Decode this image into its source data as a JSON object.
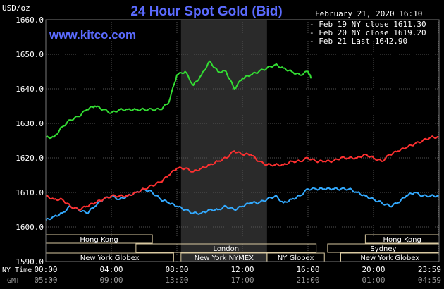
{
  "header": {
    "title": "24 Hour Spot Gold (Bid)",
    "site": "www.kitco.com",
    "unit": "USD/oz",
    "date": "February 21, 2020 16:10"
  },
  "legend": [
    {
      "label": "Feb 19 NY close 1611.30",
      "color": "#33aaff"
    },
    {
      "label": "Feb 20 NY close 1619.20",
      "color": "#ff3030"
    },
    {
      "label": "Feb 21 Last 1642.90",
      "color": "#33dd33"
    }
  ],
  "axis_labels": {
    "ny_time": "NY Time",
    "gmt": "GMT"
  },
  "markets": [
    {
      "name": "Hong Kong",
      "start": 0,
      "end": 6.5
    },
    {
      "name": "London",
      "start": 5.5,
      "end": 16.5
    },
    {
      "name": "New York Globex",
      "start": 0,
      "end": 7.8
    },
    {
      "name": "New York NYMEX",
      "start": 8.25,
      "end": 13.5
    },
    {
      "name": "NY Globex",
      "start": 13.5,
      "end": 17.0
    },
    {
      "name": "Hong Kong",
      "start": 19.5,
      "end": 24.0
    },
    {
      "name": "Sydney",
      "start": 17.2,
      "end": 24.0
    },
    {
      "name": "New York Globex",
      "start": 18.0,
      "end": 24.0
    }
  ],
  "chart_data": {
    "type": "line",
    "ylim": [
      1590,
      1660
    ],
    "xlim": [
      0,
      24
    ],
    "yticks": [
      1590,
      1600,
      1610,
      1620,
      1630,
      1640,
      1650,
      1660
    ],
    "ytick_labels": [
      "1590.0",
      "1600.0",
      "1610.0",
      "1620.0",
      "1630.0",
      "1640.0",
      "1650.0",
      "1660.0"
    ],
    "xticks": [
      0,
      4,
      8,
      12,
      16,
      20,
      23.98
    ],
    "xtick_labels_ny": [
      "00:00",
      "04:00",
      "08:00",
      "12:00",
      "16:00",
      "20:00",
      "23:59"
    ],
    "xtick_labels_gmt": [
      "05:00",
      "09:00",
      "13:00",
      "17:00",
      "21:00",
      "01:00",
      "04:59"
    ],
    "shaded_region": [
      8.25,
      13.5
    ],
    "grid": true,
    "series": [
      {
        "name": "Feb 19 NY close 1611.30",
        "color": "#33aaff",
        "x": [
          0,
          0.5,
          1,
          1.5,
          2,
          2.5,
          3,
          3.5,
          4,
          4.5,
          5,
          5.5,
          6,
          6.5,
          7,
          7.5,
          8,
          8.5,
          9,
          9.5,
          10,
          10.5,
          11,
          11.5,
          12,
          12.5,
          13,
          13.5,
          14,
          14.5,
          15,
          15.5,
          16,
          16.5,
          17,
          17.5,
          18,
          18.5,
          19,
          19.5,
          20,
          20.5,
          21,
          21.5,
          22,
          22.5,
          23,
          23.5,
          23.98
        ],
        "values": [
          1602,
          1603,
          1604,
          1606,
          1605,
          1604,
          1606,
          1608,
          1609,
          1608,
          1609,
          1610,
          1611,
          1610,
          1608,
          1607,
          1606,
          1605,
          1604,
          1604,
          1605,
          1605,
          1606,
          1605,
          1606,
          1607,
          1607,
          1608,
          1609,
          1607,
          1608,
          1609,
          1611,
          1611,
          1611,
          1611,
          1611,
          1611,
          1610,
          1609,
          1608,
          1607,
          1606,
          1607,
          1609,
          1610,
          1609,
          1609,
          1609
        ]
      },
      {
        "name": "Feb 20 NY close 1619.20",
        "color": "#ff3030",
        "x": [
          0,
          0.5,
          1,
          1.5,
          2,
          2.5,
          3,
          3.5,
          4,
          4.5,
          5,
          5.5,
          6,
          6.5,
          7,
          7.5,
          8,
          8.5,
          9,
          9.5,
          10,
          10.5,
          11,
          11.5,
          12,
          12.5,
          13,
          13.5,
          14,
          14.5,
          15,
          15.5,
          16,
          16.5,
          17,
          17.5,
          18,
          18.5,
          19,
          19.5,
          20,
          20.5,
          21,
          21.5,
          22,
          22.5,
          23,
          23.5,
          23.98
        ],
        "values": [
          1609,
          1608,
          1608,
          1606,
          1605,
          1606,
          1607,
          1608,
          1609,
          1609,
          1609,
          1610,
          1611,
          1612,
          1613,
          1615,
          1617,
          1617,
          1616,
          1617,
          1618,
          1619,
          1620,
          1622,
          1621,
          1621,
          1619,
          1618,
          1618,
          1618,
          1619,
          1619,
          1620,
          1619,
          1619,
          1619,
          1620,
          1620,
          1620,
          1621,
          1620,
          1619,
          1621,
          1622,
          1623,
          1624,
          1625,
          1626,
          1626
        ]
      },
      {
        "name": "Feb 21 Last 1642.90",
        "color": "#33dd33",
        "x": [
          0,
          0.5,
          1,
          1.5,
          2,
          2.5,
          3,
          3.5,
          4,
          4.5,
          5,
          5.5,
          6,
          6.5,
          7,
          7.5,
          8,
          8.5,
          9,
          9.5,
          10,
          10.5,
          11,
          11.5,
          12,
          12.5,
          13,
          13.5,
          14,
          14.5,
          15,
          15.5,
          16,
          16.2
        ],
        "values": [
          1626,
          1626,
          1629,
          1631,
          1632,
          1634,
          1635,
          1634,
          1633,
          1634,
          1634,
          1634,
          1634,
          1634,
          1634,
          1636,
          1644,
          1645,
          1641,
          1644,
          1648,
          1645,
          1645,
          1640,
          1643,
          1644,
          1645,
          1646,
          1647,
          1646,
          1645,
          1644,
          1645,
          1643
        ]
      }
    ]
  }
}
